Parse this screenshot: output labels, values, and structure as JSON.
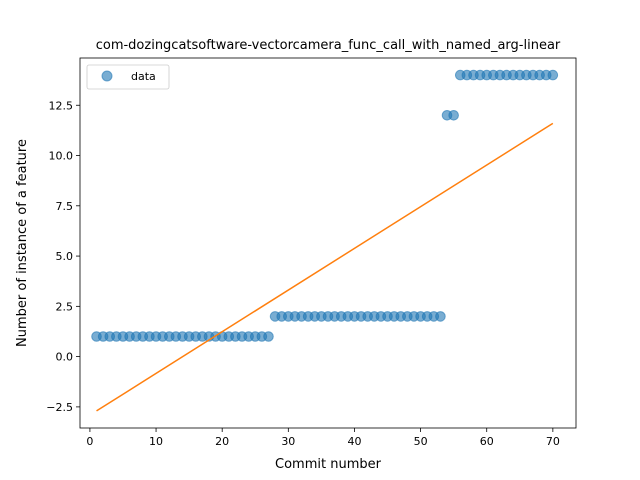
{
  "chart_data": {
    "type": "scatter",
    "title": "com-dozingcatsoftware-vectorcamera_func_call_with_named_arg-linear",
    "xlabel": "Commit number",
    "ylabel": "Number of instance of a feature",
    "xlim": [
      -1.5,
      73.5
    ],
    "ylim": [
      -3.55,
      14.85
    ],
    "xticks": [
      0,
      10,
      20,
      30,
      40,
      50,
      60,
      70
    ],
    "yticks": [
      -2.5,
      0.0,
      2.5,
      5.0,
      7.5,
      10.0,
      12.5
    ],
    "ytick_labels": [
      "−2.5",
      "0.0",
      "2.5",
      "5.0",
      "7.5",
      "10.0",
      "12.5"
    ],
    "legend": {
      "placement": "top-left",
      "entries": [
        "data"
      ]
    },
    "grid": false,
    "colors": {
      "points": "#1f77b4",
      "fit_line": "#ff7f0e"
    },
    "series": [
      {
        "name": "data",
        "kind": "scatter",
        "x": [
          1,
          2,
          3,
          4,
          5,
          6,
          7,
          8,
          9,
          10,
          11,
          12,
          13,
          14,
          15,
          16,
          17,
          18,
          19,
          20,
          21,
          22,
          23,
          24,
          25,
          26,
          27,
          28,
          29,
          30,
          31,
          32,
          33,
          34,
          35,
          36,
          37,
          38,
          39,
          40,
          41,
          42,
          43,
          44,
          45,
          46,
          47,
          48,
          49,
          50,
          51,
          52,
          53,
          54,
          55,
          56,
          57,
          58,
          59,
          60,
          61,
          62,
          63,
          64,
          65,
          66,
          67,
          68,
          69,
          70
        ],
        "y": [
          1,
          1,
          1,
          1,
          1,
          1,
          1,
          1,
          1,
          1,
          1,
          1,
          1,
          1,
          1,
          1,
          1,
          1,
          1,
          1,
          1,
          1,
          1,
          1,
          1,
          1,
          1,
          2,
          2,
          2,
          2,
          2,
          2,
          2,
          2,
          2,
          2,
          2,
          2,
          2,
          2,
          2,
          2,
          2,
          2,
          2,
          2,
          2,
          2,
          2,
          2,
          2,
          2,
          12,
          12,
          14,
          14,
          14,
          14,
          14,
          14,
          14,
          14,
          14,
          14,
          14,
          14,
          14,
          14,
          14
        ]
      },
      {
        "kind": "line",
        "x": [
          1,
          70
        ],
        "y": [
          -2.7,
          11.6
        ]
      }
    ]
  }
}
